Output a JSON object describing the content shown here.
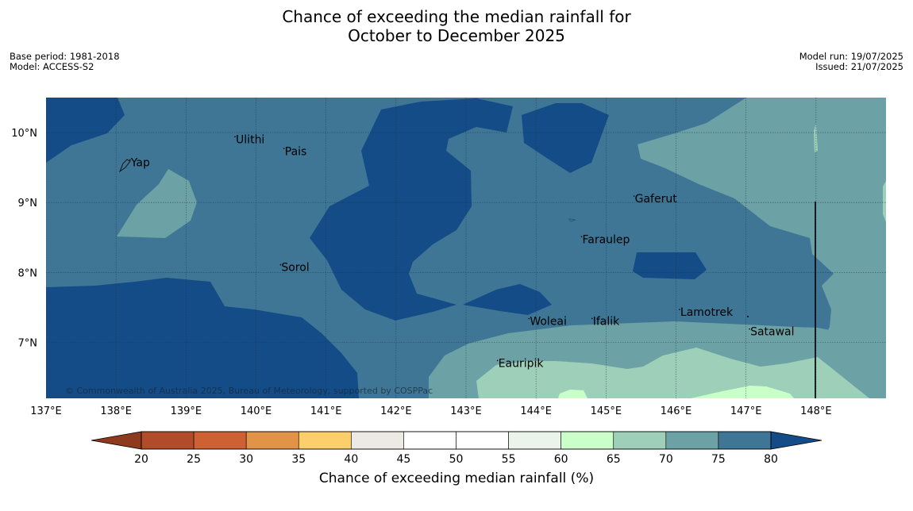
{
  "title": {
    "line1": "Chance of exceeding the median rainfall for",
    "line2": "October to December 2025"
  },
  "info_left": {
    "base_period": "Base period: 1981-2018",
    "model": "Model: ACCESS-S2"
  },
  "info_right": {
    "model_run": "Model run: 19/07/2025",
    "issued": "Issued: 21/07/2025"
  },
  "map": {
    "lon_range": [
      137,
      149
    ],
    "lat_range": [
      6.2,
      10.5
    ],
    "lon_ticks": [
      {
        "value": 137,
        "label": "137°E"
      },
      {
        "value": 138,
        "label": "138°E"
      },
      {
        "value": 139,
        "label": "139°E"
      },
      {
        "value": 140,
        "label": "140°E"
      },
      {
        "value": 141,
        "label": "141°E"
      },
      {
        "value": 142,
        "label": "142°E"
      },
      {
        "value": 143,
        "label": "143°E"
      },
      {
        "value": 144,
        "label": "144°E"
      },
      {
        "value": 145,
        "label": "145°E"
      },
      {
        "value": 146,
        "label": "146°E"
      },
      {
        "value": 147,
        "label": "147°E"
      },
      {
        "value": 148,
        "label": "148°E"
      }
    ],
    "lat_ticks": [
      {
        "value": 10,
        "label": "10°N"
      },
      {
        "value": 9,
        "label": "9°N"
      },
      {
        "value": 8,
        "label": "8°N"
      },
      {
        "value": 7,
        "label": "7°N"
      }
    ],
    "places": [
      {
        "name": "Yap",
        "lon": 138.2,
        "lat": 9.52
      },
      {
        "name": "Ulithi",
        "lon": 139.7,
        "lat": 9.85
      },
      {
        "name": "Pais",
        "lon": 140.4,
        "lat": 9.68
      },
      {
        "name": "Sorol",
        "lon": 140.35,
        "lat": 8.02
      },
      {
        "name": "Gaferut",
        "lon": 145.4,
        "lat": 9.0
      },
      {
        "name": "Faraulep",
        "lon": 144.65,
        "lat": 8.42
      },
      {
        "name": "Woleai",
        "lon": 143.9,
        "lat": 7.25
      },
      {
        "name": "Ifalik",
        "lon": 144.8,
        "lat": 7.25
      },
      {
        "name": "Lamotrek",
        "lon": 146.05,
        "lat": 7.38
      },
      {
        "name": "Satawal",
        "lon": 147.05,
        "lat": 7.1
      },
      {
        "name": "Eauripik",
        "lon": 143.45,
        "lat": 6.65
      }
    ],
    "copyright": "© Commonwealth of Australia 2025, Bureau of Meteorology, supported by COSPPac"
  },
  "colorbar": {
    "label": "Chance of exceeding median rainfall (%)",
    "ticks": [
      "20",
      "25",
      "30",
      "35",
      "40",
      "45",
      "50",
      "55",
      "60",
      "65",
      "70",
      "75",
      "80"
    ],
    "under_color": "#8e3a1e",
    "over_color": "#134c86",
    "bin_colors": [
      "#b24b29",
      "#cd6134",
      "#e19347",
      "#fdcf6b",
      "#ede9e4",
      "#ffffff",
      "#ffffff",
      "#ebf4ea",
      "#caffca",
      "#9ecfb8",
      "#6ca2a5",
      "#3f7695"
    ]
  },
  "colors": {
    "bg_70_75": "#3f7695",
    "dark_75_80": "#134c86",
    "teal_65_70": "#6ca2a5",
    "light_60_65": "#9ecfb8",
    "pale_55_60": "#caffca"
  }
}
